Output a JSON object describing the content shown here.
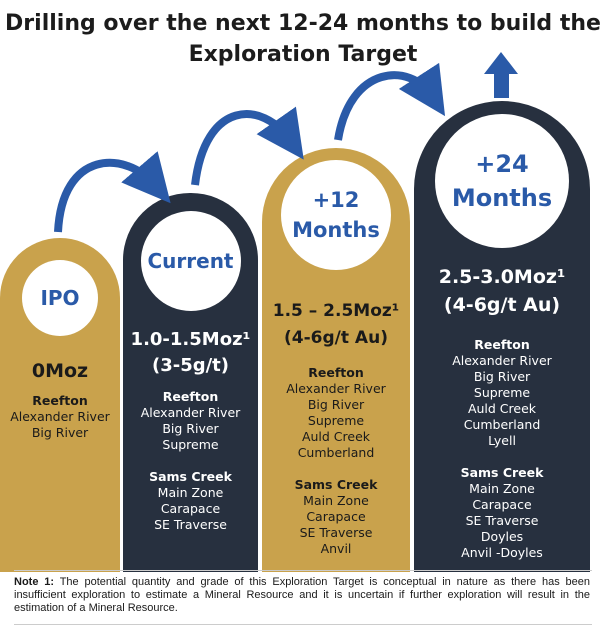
{
  "title": "Drilling over the next 12-24 months to build the Exploration Target",
  "colors": {
    "gold": "#C9A24C",
    "navy": "#27303F",
    "blue": "#2A5AA8"
  },
  "columns": [
    {
      "label": "IPO",
      "amount_line1": "0Moz",
      "amount_line2": "",
      "reefton_head": "Reefton",
      "reefton": [
        "Alexander River",
        "Big River"
      ],
      "sams_head": "",
      "sams": []
    },
    {
      "label": "Current",
      "amount_line1": "1.0-1.5Moz¹",
      "amount_line2": "(3-5g/t)",
      "reefton_head": "Reefton",
      "reefton": [
        "Alexander River",
        "Big River",
        "Supreme"
      ],
      "sams_head": "Sams Creek",
      "sams": [
        "Main Zone",
        "Carapace",
        "SE Traverse"
      ]
    },
    {
      "label": "+12 Months",
      "label_line1": "+12",
      "label_line2": "Months",
      "amount_line1": "1.5 – 2.5Moz¹",
      "amount_line2": "(4-6g/t Au)",
      "reefton_head": "Reefton",
      "reefton": [
        "Alexander River",
        "Big River",
        "Supreme",
        "Auld Creek",
        "Cumberland"
      ],
      "sams_head": "Sams Creek",
      "sams": [
        "Main Zone",
        "Carapace",
        "SE Traverse",
        "Anvil"
      ]
    },
    {
      "label": "+24 Months",
      "label_line1": "+24",
      "label_line2": "Months",
      "amount_line1": "2.5-3.0Moz¹",
      "amount_line2": "(4-6g/t Au)",
      "reefton_head": "Reefton",
      "reefton": [
        "Alexander River",
        "Big River",
        "Supreme",
        "Auld Creek",
        "Cumberland",
        "Lyell"
      ],
      "sams_head": "Sams Creek",
      "sams": [
        "Main Zone",
        "Carapace",
        "SE Traverse",
        "Doyles",
        "Anvil -Doyles"
      ]
    }
  ],
  "note": {
    "label": "Note 1:",
    "text": "The potential quantity and grade of this Exploration Target is conceptual in nature as there has been insufficient exploration to estimate a Mineral Resource and it is uncertain if further exploration will result in the estimation of a Mineral Resource."
  }
}
